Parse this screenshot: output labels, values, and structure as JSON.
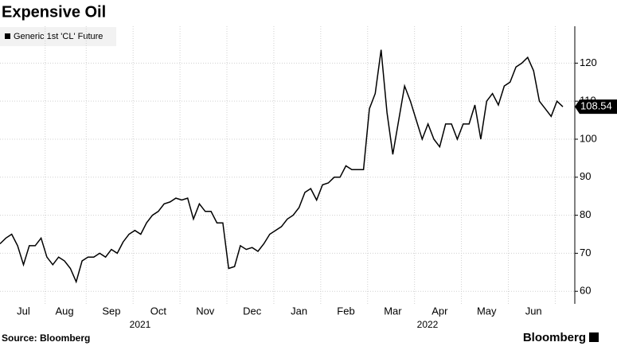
{
  "chart_data": {
    "type": "line",
    "title": "Expensive Oil",
    "source": "Source: Bloomberg",
    "brand": "Bloomberg",
    "years": [
      "2021",
      "2022"
    ],
    "categories": [
      null,
      null,
      null,
      null,
      "Jul",
      null,
      null,
      null,
      null,
      null,
      null,
      "Aug",
      null,
      null,
      null,
      null,
      null,
      null,
      null,
      "Sep",
      null,
      null,
      null,
      null,
      null,
      null,
      null,
      "Oct",
      null,
      null,
      null,
      null,
      null,
      null,
      null,
      "Nov",
      null,
      null,
      null,
      null,
      null,
      null,
      null,
      "Dec",
      null,
      null,
      null,
      null,
      null,
      null,
      null,
      "Jan",
      null,
      null,
      null,
      null,
      null,
      null,
      null,
      "Feb",
      null,
      null,
      null,
      null,
      null,
      null,
      null,
      "Mar",
      null,
      null,
      null,
      null,
      null,
      null,
      null,
      "Apr",
      null,
      null,
      null,
      null,
      null,
      null,
      null,
      "May",
      null,
      null,
      null,
      null,
      null,
      null,
      null,
      "Jun",
      null,
      null,
      null,
      null,
      null
    ],
    "series": [
      {
        "name": "Generic 1st 'CL' Future",
        "color": "#000000",
        "values": [
          72.5,
          74,
          75,
          72,
          67,
          72,
          72,
          74,
          69,
          67,
          69,
          68,
          66,
          62.5,
          68,
          69,
          69,
          70,
          69,
          71,
          70,
          73,
          75,
          76,
          75,
          78,
          80,
          81,
          83,
          83.5,
          84.5,
          84,
          84.5,
          79,
          83,
          81,
          81,
          78,
          78,
          66,
          66.5,
          72,
          71,
          71.5,
          70.5,
          72.5,
          75,
          76,
          77,
          79,
          80,
          82,
          86,
          87,
          84,
          88,
          88.5,
          90,
          90,
          93,
          92,
          92,
          92,
          108,
          112,
          123.5,
          107,
          96,
          105,
          114,
          110,
          105,
          100,
          104,
          100,
          98,
          104,
          104,
          100,
          104,
          104,
          109,
          100,
          110,
          112,
          109,
          114,
          115,
          119,
          120,
          121.5,
          118,
          110,
          108,
          106,
          110,
          108.54
        ]
      }
    ],
    "ylim": [
      56.7,
      129.7
    ],
    "yticks": [
      60,
      70,
      80,
      90,
      100,
      110,
      120
    ],
    "grid": true,
    "legend": "top-left"
  }
}
